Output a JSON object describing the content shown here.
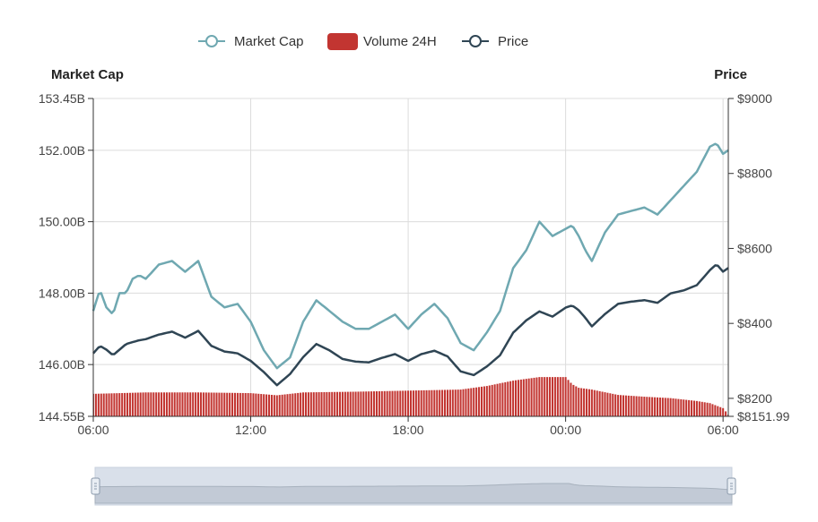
{
  "chart_data": {
    "type": "line+bar",
    "legend": [
      {
        "name": "Market Cap",
        "kind": "line",
        "color": "#6fa8b1"
      },
      {
        "name": "Volume 24H",
        "kind": "bar",
        "color": "#c23531"
      },
      {
        "name": "Price",
        "kind": "line",
        "color": "#2f4554"
      }
    ],
    "left_axis": {
      "title": "Market Cap",
      "min": 144.55,
      "max": 153.45,
      "ticks": [
        144.55,
        146.0,
        148.0,
        150.0,
        152.0,
        153.45
      ],
      "tick_labels": [
        "144.55B",
        "146.00B",
        "148.00B",
        "150.00B",
        "152.00B",
        "153.45B"
      ]
    },
    "right_axis": {
      "title": "Price",
      "min": 8151.99,
      "max": 9000,
      "ticks": [
        8151.99,
        8200,
        8400,
        8600,
        8800,
        9000
      ],
      "tick_labels": [
        "$8151.99",
        "$8200",
        "$8400",
        "$8600",
        "$8800",
        "$9000"
      ]
    },
    "x_axis": {
      "min_hours": 0,
      "max_hours": 24.2,
      "ticks": [
        0,
        6,
        12,
        18,
        24
      ],
      "tick_labels": [
        "06:00",
        "12:00",
        "18:00",
        "00:00",
        "06:00"
      ]
    },
    "series": [
      {
        "name": "Market Cap",
        "x": [
          0,
          0.25,
          0.5,
          0.75,
          1,
          1.25,
          1.5,
          1.75,
          2,
          2.5,
          3,
          3.5,
          4,
          4.5,
          5,
          5.5,
          6,
          6.5,
          7,
          7.5,
          8,
          8.5,
          9,
          9.5,
          10,
          10.5,
          11,
          11.5,
          12,
          12.5,
          13,
          13.5,
          14,
          14.5,
          15,
          15.5,
          16,
          16.5,
          17,
          17.5,
          18,
          18.25,
          18.5,
          18.75,
          19,
          19.5,
          20,
          20.5,
          21,
          21.5,
          22,
          22.5,
          23,
          23.5,
          23.75,
          24,
          24.2
        ],
        "values": [
          147.5,
          148.1,
          147.6,
          147.4,
          148.0,
          148.0,
          148.4,
          148.5,
          148.4,
          148.8,
          148.9,
          148.6,
          148.9,
          147.9,
          147.6,
          147.7,
          147.2,
          146.4,
          145.9,
          146.2,
          147.2,
          147.8,
          147.5,
          147.2,
          147.0,
          147.0,
          147.2,
          147.4,
          147.0,
          147.4,
          147.7,
          147.3,
          146.6,
          146.4,
          146.9,
          147.5,
          148.7,
          149.2,
          150.0,
          149.6,
          149.8,
          149.9,
          149.6,
          149.2,
          148.9,
          149.7,
          150.2,
          150.3,
          150.4,
          150.2,
          150.6,
          151.0,
          151.4,
          152.1,
          152.2,
          151.9,
          152.0
        ]
      },
      {
        "name": "Price",
        "x": [
          0,
          0.25,
          0.5,
          0.75,
          1,
          1.25,
          1.5,
          1.75,
          2,
          2.5,
          3,
          3.5,
          4,
          4.5,
          5,
          5.5,
          6,
          6.5,
          7,
          7.5,
          8,
          8.5,
          9,
          9.5,
          10,
          10.5,
          11,
          11.5,
          12,
          12.5,
          13,
          13.5,
          14,
          14.5,
          15,
          15.5,
          16,
          16.5,
          17,
          17.5,
          18,
          18.25,
          18.5,
          18.75,
          19,
          19.5,
          20,
          20.5,
          21,
          21.5,
          22,
          22.5,
          23,
          23.5,
          23.75,
          24,
          24.2
        ],
        "values": [
          8320,
          8340,
          8330,
          8315,
          8330,
          8345,
          8350,
          8355,
          8358,
          8370,
          8378,
          8362,
          8380,
          8340,
          8325,
          8320,
          8300,
          8270,
          8235,
          8265,
          8310,
          8345,
          8328,
          8305,
          8298,
          8296,
          8308,
          8318,
          8300,
          8318,
          8327,
          8312,
          8272,
          8262,
          8285,
          8315,
          8375,
          8408,
          8432,
          8418,
          8442,
          8448,
          8435,
          8415,
          8392,
          8425,
          8452,
          8458,
          8462,
          8455,
          8480,
          8488,
          8502,
          8542,
          8558,
          8538,
          8548
        ]
      },
      {
        "name": "Volume 24H",
        "x": [
          0,
          2,
          4,
          6,
          7,
          8,
          10,
          12,
          14,
          15,
          16,
          17,
          17.5,
          18,
          18.25,
          18.5,
          19,
          20,
          21,
          22,
          23,
          23.5,
          24,
          24.2
        ],
        "values": [
          145.18,
          145.22,
          145.22,
          145.2,
          145.14,
          145.22,
          145.24,
          145.27,
          145.3,
          145.4,
          145.55,
          145.65,
          145.65,
          145.65,
          145.45,
          145.35,
          145.3,
          145.15,
          145.1,
          145.06,
          144.98,
          144.92,
          144.78,
          144.6
        ]
      }
    ]
  }
}
